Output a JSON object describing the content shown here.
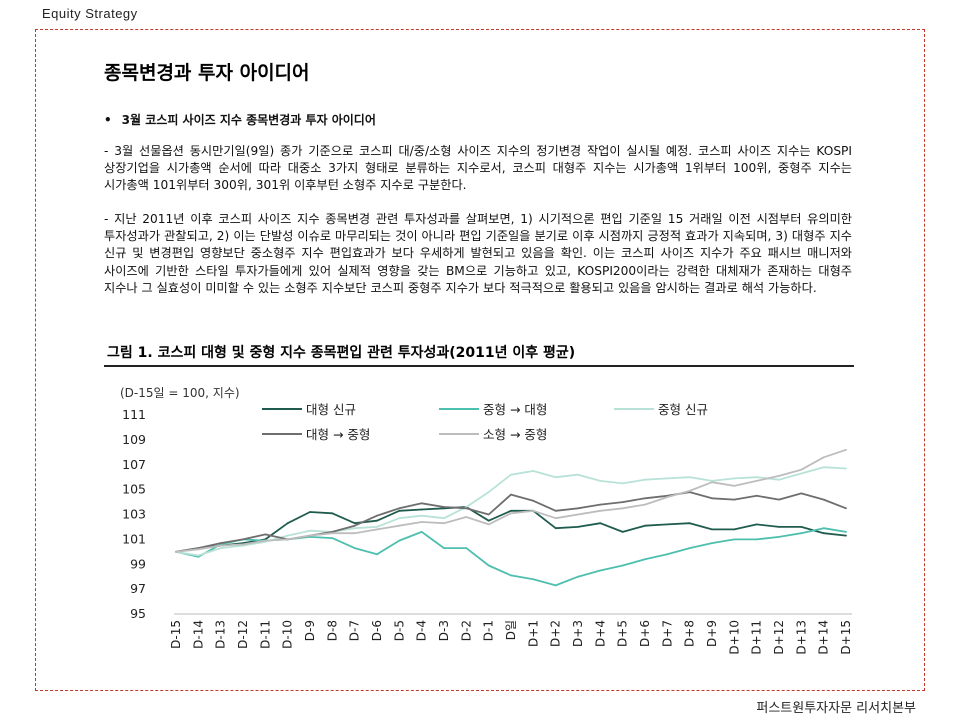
{
  "header": {
    "section": "Equity  Strategy"
  },
  "title": "종목변경과 투자 아이디어",
  "bullet": {
    "symbol": "•",
    "text": "3월 코스피 사이즈 지수 종목변경과 투자 아이디어"
  },
  "paragraphs": [
    "- 3월 선물옵션 동시만기일(9일) 종가 기준으로 코스피 대/중/소형 사이즈 지수의 정기변경 작업이 실시될 예정. 코스피 사이즈 지수는 KOSPI 상장기업을 시가총액 순서에 따라 대중소 3가지 형태로 분류하는 지수로서, 코스피 대형주 지수는 시가총액 1위부터 100위, 중형주 지수는 시가총액 101위부터 300위, 301위 이후부턴 소형주 지수로 구분한다.",
    "- 지난 2011년 이후 코스피 사이즈 지수 종목변경 관련 투자성과를 살펴보면, 1) 시기적으론 편입 기준일 15 거래일 이전 시점부터 유의미한 투자성과가 관찰되고, 2) 이는 단발성 이슈로 마무리되는 것이 아니라 편입 기준일을 분기로 이후 시점까지 긍정적 효과가 지속되며, 3) 대형주 지수 신규 및 변경편입 영향보단 중소형주 지수 편입효과가 보다 우세하게 발현되고 있음을 확인. 이는 코스피 사이즈 지수가 주요 패시브 매니저와 사이즈에 기반한 스타일 투자가들에게 있어 실제적 영향을 갖는 BM으로 기능하고 있고, KOSPI200이라는 강력한 대체재가 존재하는 대형주 지수나 그 실효성이 미미할 수 있는 소형주 지수보단 코스피 중형주 지수가 보다 적극적으로 활용되고 있음을 암시하는 결과로 해석 가능하다."
  ],
  "figure": {
    "title": "그림 1. 코스피 대형 및 중형 지수 종목편입 관련 투자성과(2011년 이후 평균)"
  },
  "footer": {
    "source": "퍼스트원투자자문 리서치본부"
  },
  "chart_data": {
    "type": "line",
    "unit_label": "(D-15일 = 100, 지수)",
    "ylim": [
      95,
      111
    ],
    "yticks": [
      95,
      97,
      99,
      101,
      103,
      105,
      107,
      109,
      111
    ],
    "categories": [
      "D-15",
      "D-14",
      "D-13",
      "D-12",
      "D-11",
      "D-10",
      "D-9",
      "D-8",
      "D-7",
      "D-6",
      "D-5",
      "D-4",
      "D-3",
      "D-2",
      "D-1",
      "D일",
      "D+1",
      "D+2",
      "D+3",
      "D+4",
      "D+5",
      "D+6",
      "D+7",
      "D+8",
      "D+9",
      "D+10",
      "D+11",
      "D+12",
      "D+13",
      "D+14",
      "D+15"
    ],
    "grid": false,
    "legend_position": "top",
    "series": [
      {
        "name": "대형 신규",
        "color": "#1f5c4f",
        "values": [
          100.0,
          100.3,
          100.5,
          100.7,
          101.0,
          102.3,
          103.2,
          103.1,
          102.3,
          102.5,
          103.3,
          103.4,
          103.5,
          103.6,
          102.5,
          103.3,
          103.3,
          101.9,
          102.0,
          102.3,
          101.6,
          102.1,
          102.2,
          102.3,
          101.8,
          101.8,
          102.2,
          102.0,
          102.0,
          101.5,
          101.3
        ]
      },
      {
        "name": "중형 → 대형",
        "color": "#4dbfae",
        "values": [
          100.0,
          99.6,
          100.6,
          101.0,
          100.9,
          101.0,
          101.2,
          101.1,
          100.3,
          99.8,
          100.9,
          101.6,
          100.3,
          100.3,
          98.9,
          98.1,
          97.8,
          97.3,
          98.0,
          98.5,
          98.9,
          99.4,
          99.8,
          100.3,
          100.7,
          101.0,
          101.0,
          101.2,
          101.5,
          101.9,
          101.6
        ]
      },
      {
        "name": "중형 신규",
        "color": "#b8e2d8",
        "values": [
          100.0,
          99.7,
          100.3,
          100.5,
          100.8,
          101.3,
          101.7,
          101.6,
          101.9,
          102.0,
          102.7,
          102.9,
          102.7,
          103.6,
          104.8,
          106.2,
          106.5,
          106.0,
          106.2,
          105.7,
          105.5,
          105.8,
          105.9,
          106.0,
          105.7,
          105.9,
          106.0,
          105.8,
          106.3,
          106.8,
          106.7
        ]
      },
      {
        "name": "대형 → 중형",
        "color": "#6e6e6e",
        "values": [
          100.0,
          100.3,
          100.7,
          101.0,
          101.4,
          101.0,
          101.3,
          101.6,
          102.1,
          102.9,
          103.5,
          103.9,
          103.6,
          103.5,
          103.0,
          104.6,
          104.1,
          103.3,
          103.5,
          103.8,
          104.0,
          104.3,
          104.5,
          104.8,
          104.3,
          104.2,
          104.5,
          104.2,
          104.7,
          104.2,
          103.5
        ]
      },
      {
        "name": "소형 → 중형",
        "color": "#bdbdbd",
        "values": [
          100.0,
          100.2,
          100.5,
          100.6,
          100.9,
          101.0,
          101.3,
          101.5,
          101.5,
          101.8,
          102.1,
          102.4,
          102.3,
          102.8,
          102.2,
          103.1,
          103.3,
          102.7,
          103.0,
          103.3,
          103.5,
          103.8,
          104.4,
          104.9,
          105.6,
          105.3,
          105.7,
          106.1,
          106.6,
          107.6,
          108.2
        ]
      }
    ]
  }
}
